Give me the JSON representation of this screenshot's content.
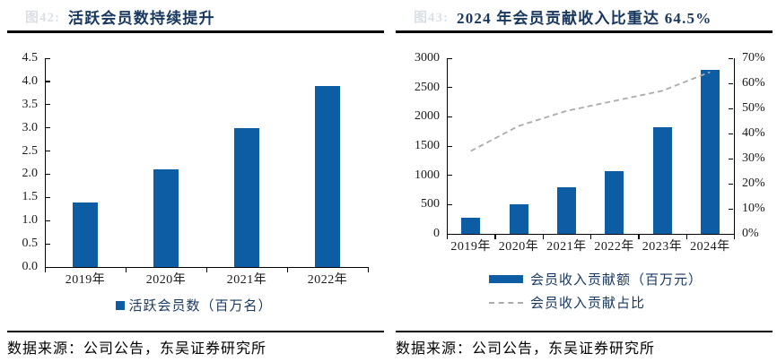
{
  "colors": {
    "bar": "#0C5DA3",
    "line": "#ABABAB",
    "title": "#17375E"
  },
  "panels": [
    {
      "figure_no": "图42:",
      "title": "活跃会员数持续提升",
      "source": "数据来源：公司公告，东吴证券研究所",
      "chart_data": {
        "type": "bar",
        "categories": [
          "2019年",
          "2020年",
          "2021年",
          "2022年"
        ],
        "series": [
          {
            "name": "活跃会员数（百万名）",
            "type": "bar",
            "axis": "left",
            "values": [
              1.4,
              2.1,
              3.0,
              3.9
            ]
          }
        ],
        "y_left": {
          "min": 0,
          "max": 4.5,
          "step": 0.5,
          "decimals": 1
        },
        "grid": false,
        "legend_position": "bottom-center"
      }
    },
    {
      "figure_no": "图43:",
      "title": "2024 年会员贡献收入比重达 64.5%",
      "source": "数据来源：公司公告，东吴证券研究所",
      "chart_data": {
        "type": "bar+line",
        "categories": [
          "2019年",
          "2020年",
          "2021年",
          "2022年",
          "2023年",
          "2024年"
        ],
        "series": [
          {
            "name": "会员收入贡献额（百万元）",
            "type": "bar",
            "axis": "left",
            "values": [
              280,
              500,
              790,
              1070,
              1820,
              2800
            ]
          },
          {
            "name": "会员收入贡献占比",
            "type": "line",
            "axis": "right",
            "values": [
              33,
              43,
              49,
              53,
              57,
              64.5
            ]
          }
        ],
        "y_left": {
          "min": 0,
          "max": 3000,
          "step": 500,
          "decimals": 0
        },
        "y_right": {
          "min": 0,
          "max": 70,
          "step": 10,
          "suffix": "%"
        },
        "grid": false,
        "legend_position": "bottom-left"
      }
    }
  ]
}
